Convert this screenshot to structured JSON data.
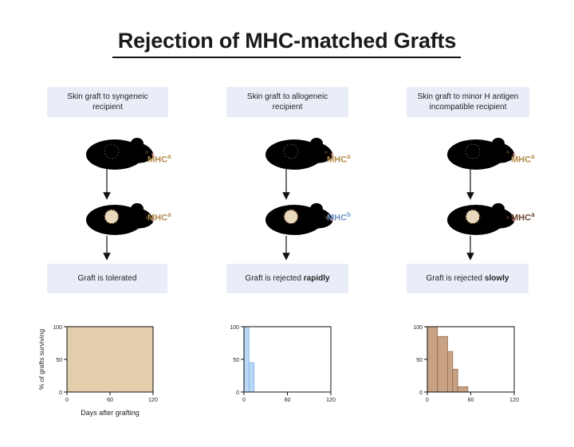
{
  "title": "Rejection of MHC-matched Grafts",
  "panels": [
    {
      "top_label": "Skin graft to syngeneic recipient",
      "result_label": "Graft is tolerated",
      "result_bold": "",
      "donor_mhc": "MHC",
      "donor_sup": "a",
      "recipient_mhc": "MHC",
      "recipient_sup": "a"
    },
    {
      "top_label": "Skin graft to allogeneic recipient",
      "result_label": "Graft is rejected ",
      "result_bold": "rapidly",
      "donor_mhc": "MHC",
      "donor_sup": "a",
      "recipient_mhc": "MHC",
      "recipient_sup": "b"
    },
    {
      "top_label": "Skin graft to minor H antigen incompatible recipient",
      "result_label": "Graft is rejected ",
      "result_bold": "slowly",
      "donor_mhc": "MHC",
      "donor_sup": "a",
      "recipient_mhc": "MHC",
      "recipient_sup": "a"
    }
  ],
  "colors": {
    "mouse_tan": "#e9d9bd",
    "mouse_blue": "#b9d1ef",
    "mouse_brown": "#b9906f",
    "mhc_tan_text": "#b38a46",
    "mhc_blue_text": "#6f95c8",
    "mhc_brown_text": "#6b4330",
    "bar_tan": "#e2ceab",
    "bar_blue": "#b9d8f4",
    "bar_brown": "#c9a283"
  },
  "chart_data": [
    {
      "type": "bar",
      "title": "",
      "xlabel": "Days after grafting",
      "ylabel": "% of grafts surviving",
      "xlim": [
        0,
        120
      ],
      "ylim": [
        0,
        100
      ],
      "xticks": [
        0,
        60,
        120
      ],
      "yticks": [
        0,
        50,
        100
      ],
      "bins": [
        {
          "x0": 0,
          "x1": 120,
          "value": 100
        }
      ]
    },
    {
      "type": "bar",
      "title": "",
      "xlabel": "",
      "ylabel": "",
      "xlim": [
        0,
        120
      ],
      "ylim": [
        0,
        100
      ],
      "xticks": [
        0,
        60,
        120
      ],
      "yticks": [
        0,
        50,
        100
      ],
      "bins": [
        {
          "x0": 0,
          "x1": 7,
          "value": 100
        },
        {
          "x0": 7,
          "x1": 14,
          "value": 45
        }
      ]
    },
    {
      "type": "bar",
      "title": "",
      "xlabel": "",
      "ylabel": "",
      "xlim": [
        0,
        120
      ],
      "ylim": [
        0,
        100
      ],
      "xticks": [
        0,
        60,
        120
      ],
      "yticks": [
        0,
        50,
        100
      ],
      "bins": [
        {
          "x0": 0,
          "x1": 14,
          "value": 100
        },
        {
          "x0": 14,
          "x1": 28,
          "value": 85
        },
        {
          "x0": 28,
          "x1": 35,
          "value": 62
        },
        {
          "x0": 35,
          "x1": 42,
          "value": 35
        },
        {
          "x0": 42,
          "x1": 56,
          "value": 8
        }
      ]
    }
  ]
}
